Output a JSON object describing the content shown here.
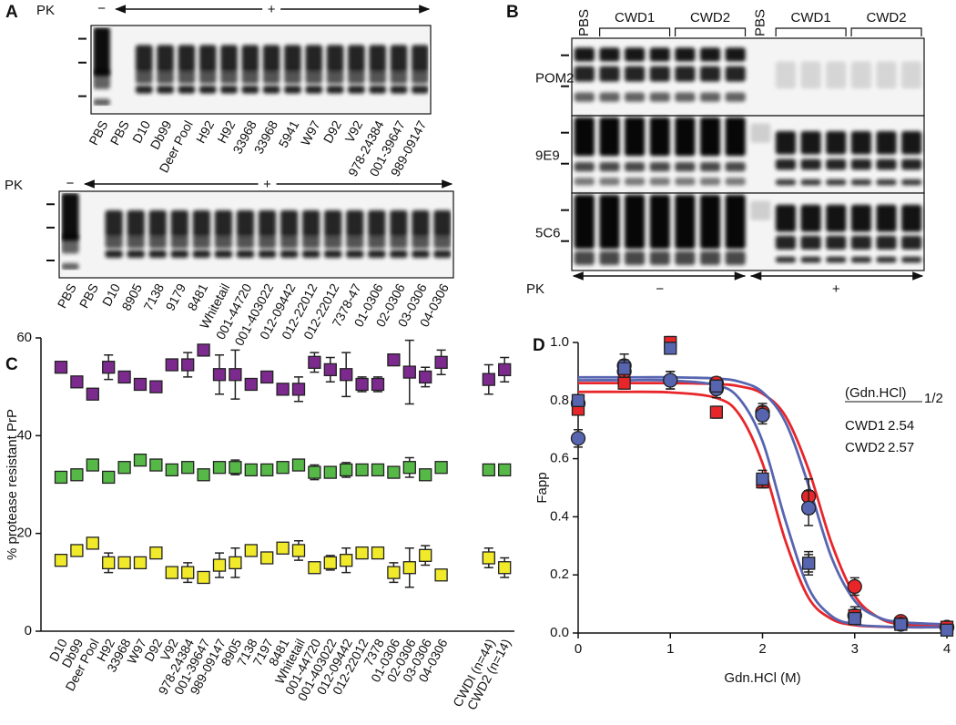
{
  "panels": {
    "A": {
      "label": "A",
      "blots": [
        {
          "pk_label": "PK",
          "minus": "−",
          "plus": "+",
          "lanes": [
            "PBS",
            "PBS",
            "D10",
            "Db99",
            "Deer Pool",
            "H92",
            "H92",
            "33968",
            "33968",
            "5941",
            "W97",
            "D92",
            "V92",
            "978-24384",
            "001-39647",
            "989-09147"
          ]
        },
        {
          "pk_label": "PK",
          "minus": "−",
          "plus": "+",
          "lanes": [
            "PBS",
            "PBS",
            "D10",
            "8905",
            "7138",
            "9179",
            "8481",
            "Whitetail",
            "001-44720",
            "001-403022",
            "012-09442",
            "012-22012",
            "012-22012",
            "7378-47",
            "01-0306",
            "02-0306",
            "03-0306",
            "04-0306"
          ]
        }
      ]
    },
    "B": {
      "label": "B",
      "columns": [
        "PBS",
        "CWD1",
        "CWD2",
        "PBS",
        "CWD1",
        "CWD2"
      ],
      "rows": [
        "POM2",
        "9E9",
        "5C6"
      ],
      "pk_label": "PK",
      "minus": "−",
      "plus": "+"
    }
  },
  "chart_data": [
    {
      "type": "scatter",
      "panel": "C",
      "ylabel": "% protease resistant PrP",
      "categories": [
        "D10",
        "Db99",
        "Deer Pool",
        "H92",
        "33968",
        "W97",
        "D92",
        "V92",
        "978-24384",
        "001-39647",
        "989-09147",
        "8905",
        "7138",
        "7197",
        "8481",
        "Whitetail",
        "001-44720",
        "001-403022",
        "012-09442",
        "012-22012",
        "7378",
        "01-0306",
        "02-0306",
        "03-0306",
        "04-0306",
        null,
        null,
        "CWDI (n=44)",
        "CWD2 (n=14)"
      ],
      "series": [
        {
          "color": "#7d2a8f",
          "values": [
            54,
            51,
            48.5,
            54,
            52,
            50.5,
            50,
            54.5,
            54.5,
            57.5,
            52.5,
            52.5,
            50.5,
            52,
            49.5,
            49.5,
            55,
            53.5,
            52.5,
            50.5,
            50.5,
            55.5,
            53,
            52,
            55,
            null,
            null,
            51.5,
            53.5
          ],
          "errors": [
            1,
            1,
            1,
            2.5,
            1,
            1,
            1,
            1,
            2.5,
            1,
            4,
            5,
            1,
            1,
            1,
            2.5,
            2,
            2.5,
            4.5,
            1.5,
            1.5,
            1,
            6.5,
            2,
            2.5,
            null,
            null,
            3,
            2.5
          ]
        },
        {
          "color": "#56b947",
          "values": [
            31.5,
            32,
            34,
            31.5,
            33.5,
            35,
            34,
            33,
            33.5,
            32,
            33.5,
            33.5,
            33,
            33,
            33.5,
            34,
            32.5,
            32.5,
            33,
            33,
            33,
            32.5,
            33.5,
            32,
            33.5,
            null,
            null,
            33,
            33
          ],
          "errors": [
            1,
            1,
            1,
            1,
            1,
            1,
            1,
            1,
            1,
            1,
            1,
            1.5,
            1,
            1,
            1,
            1,
            1.5,
            1,
            1.5,
            1,
            1,
            1,
            2,
            1,
            1,
            null,
            null,
            1,
            1
          ]
        },
        {
          "color": "#f1ea2a",
          "values": [
            14.5,
            16.5,
            18,
            14,
            14,
            14,
            16,
            12,
            12,
            11,
            13.5,
            14,
            16.5,
            15,
            17,
            16.5,
            13,
            14,
            14.5,
            16,
            16,
            12,
            13,
            15.5,
            11.5,
            null,
            null,
            15,
            13
          ],
          "errors": [
            1,
            1,
            1,
            2,
            1,
            1,
            1,
            1,
            2,
            1,
            2.5,
            3,
            1,
            1,
            1,
            2,
            1,
            1.5,
            2.5,
            1,
            1,
            2,
            4,
            2,
            1,
            null,
            null,
            2,
            2
          ]
        }
      ],
      "ylim": [
        0,
        60
      ],
      "yticks": [
        0,
        20,
        40,
        60
      ],
      "marker": "square"
    },
    {
      "type": "scatter",
      "panel": "D",
      "xlabel": "Gdn.HCl (M)",
      "ylabel": "Fapp",
      "x": [
        0,
        0.5,
        1,
        1.5,
        2,
        2.5,
        3,
        3.5,
        4
      ],
      "series": [
        {
          "color": "#e8262a",
          "marker": "circle",
          "values": [
            0.79,
            0.9,
            0.87,
            0.86,
            0.76,
            0.47,
            0.16,
            0.04,
            0.02
          ],
          "errors": [
            0.03,
            0.03,
            0.03,
            0.02,
            0.03,
            0.06,
            0.03,
            0.01,
            0.01
          ]
        },
        {
          "color": "#5765b0",
          "marker": "circle",
          "values": [
            0.67,
            0.92,
            0.87,
            0.84,
            0.75,
            0.43,
            0.06,
            0.03,
            0.02
          ],
          "errors": [
            0.03,
            0.04,
            0.03,
            0.03,
            0.03,
            0.06,
            0.03,
            0.01,
            0.01
          ]
        },
        {
          "color": "#e8262a",
          "marker": "square",
          "values": [
            0.77,
            0.86,
            1.0,
            0.76,
            0.52,
            0.24,
            0.06,
            0.03,
            0.02
          ],
          "errors": [
            0.02,
            0.02,
            0.02,
            0.02,
            0.02,
            0.03,
            0.02,
            0.01,
            0.01
          ]
        },
        {
          "color": "#5765b0",
          "marker": "square",
          "values": [
            0.8,
            0.91,
            0.98,
            0.85,
            0.53,
            0.24,
            0.05,
            0.03,
            0.01
          ],
          "errors": [
            0.02,
            0.03,
            0.02,
            0.02,
            0.03,
            0.04,
            0.02,
            0.01,
            0.01
          ]
        }
      ],
      "fits": [
        {
          "color": "#e8262a",
          "x": [
            0,
            0.5,
            1,
            1.5,
            1.75,
            2,
            2.25,
            2.5,
            2.75,
            3,
            3.25,
            3.5,
            4
          ],
          "values": [
            0.86,
            0.86,
            0.86,
            0.857,
            0.849,
            0.824,
            0.746,
            0.562,
            0.308,
            0.129,
            0.055,
            0.03,
            0.021
          ]
        },
        {
          "color": "#5765b0",
          "x": [
            0,
            0.5,
            1,
            1.5,
            1.75,
            2,
            2.25,
            2.5,
            2.75,
            3,
            3.25,
            3.5,
            4
          ],
          "values": [
            0.88,
            0.88,
            0.88,
            0.876,
            0.865,
            0.829,
            0.725,
            0.508,
            0.259,
            0.111,
            0.055,
            0.037,
            0.03
          ]
        },
        {
          "color": "#e8262a",
          "x": [
            0,
            0.5,
            1,
            1.5,
            1.75,
            2,
            2.25,
            2.5,
            2.75,
            3,
            3.25,
            3.5,
            4
          ],
          "values": [
            0.83,
            0.83,
            0.828,
            0.809,
            0.751,
            0.584,
            0.316,
            0.121,
            0.048,
            0.027,
            0.022,
            0.02,
            0.02
          ]
        },
        {
          "color": "#5765b0",
          "x": [
            0,
            0.5,
            1,
            1.5,
            1.75,
            2,
            2.25,
            2.5,
            2.75,
            3,
            3.25,
            3.5,
            4
          ],
          "values": [
            0.87,
            0.87,
            0.869,
            0.853,
            0.806,
            0.66,
            0.386,
            0.155,
            0.058,
            0.03,
            0.023,
            0.02,
            0.02
          ]
        }
      ],
      "xlim": [
        0,
        4
      ],
      "xticks": [
        0,
        1,
        2,
        3,
        4
      ],
      "ylim": [
        0,
        1
      ],
      "yticks": [
        {
          "value": 0,
          "label": "0.0"
        },
        0.2,
        0.4,
        0.6,
        0.8,
        {
          "value": 1,
          "label": "1.0"
        }
      ],
      "annotation": {
        "header": "(Gdn.HCl)",
        "header_sub": "1/2",
        "rows": [
          [
            "CWD1",
            "2.54"
          ],
          [
            "CWD2",
            "2.57"
          ]
        ]
      }
    }
  ]
}
